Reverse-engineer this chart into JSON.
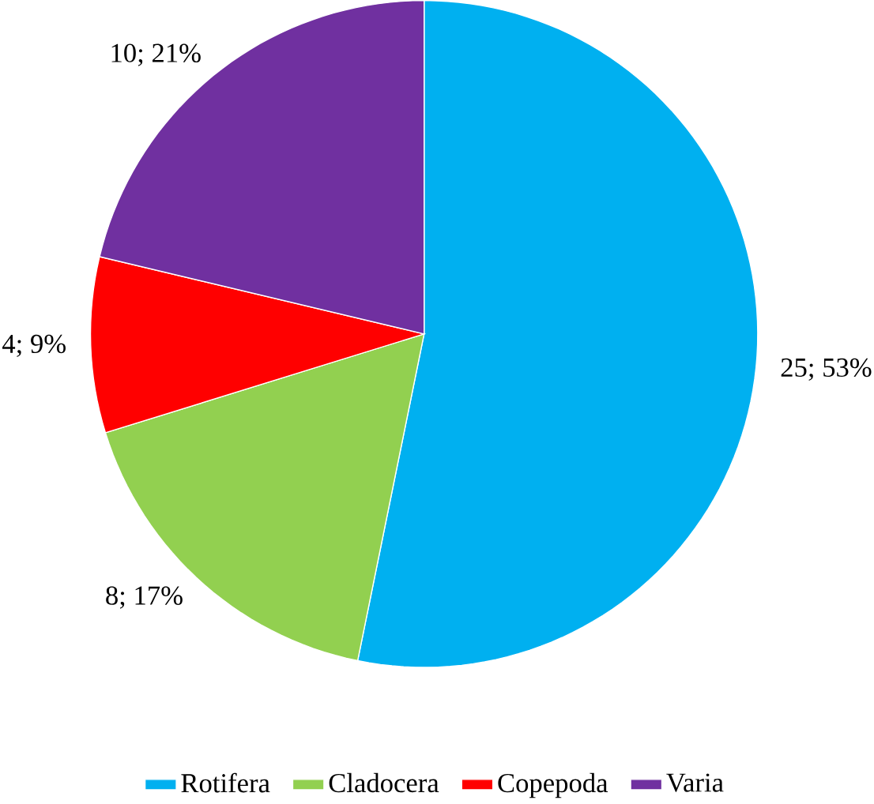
{
  "chart_data": {
    "type": "pie",
    "categories": [
      "Rotifera",
      "Cladocera",
      "Copepoda",
      "Varia"
    ],
    "values": [
      25,
      8,
      4,
      10
    ],
    "colors": [
      "#00b0f0",
      "#92d050",
      "#ff0000",
      "#7030a0"
    ],
    "value_labels": [
      "25; 53%",
      "8; 17%",
      "4; 9%",
      "10; 21%"
    ],
    "legend": "bottom"
  }
}
